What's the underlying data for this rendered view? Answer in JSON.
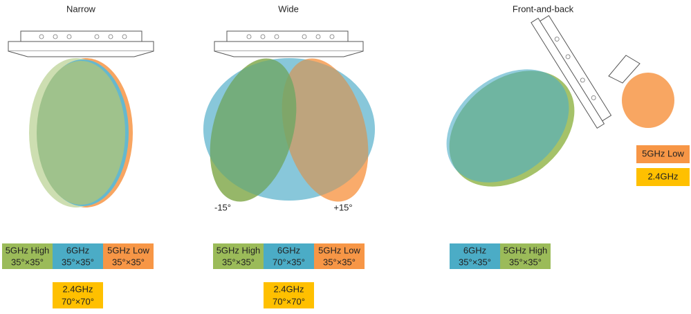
{
  "panels": [
    {
      "title": "Narrow",
      "boxes": [
        {
          "label": "5GHz High",
          "spec": "35°×35°"
        },
        {
          "label": "6GHz",
          "spec": "35°×35°"
        },
        {
          "label": "5GHz Low",
          "spec": "35°×35°"
        },
        {
          "label": "2.4GHz",
          "spec": "70°×70°"
        }
      ]
    },
    {
      "title": "Wide",
      "angle_labels": [
        "-15°",
        "+15°"
      ],
      "boxes": [
        {
          "label": "5GHz High",
          "spec": "35°×35°"
        },
        {
          "label": "6GHz",
          "spec": "70°×35°"
        },
        {
          "label": "5GHz Low",
          "spec": "35°×35°"
        },
        {
          "label": "2.4GHz",
          "spec": "70°×70°"
        }
      ]
    },
    {
      "title": "Front-and-back",
      "boxes": [
        {
          "label": "6GHz",
          "spec": "35°×35°"
        },
        {
          "label": "5GHz High",
          "spec": "35°×35°"
        },
        {
          "label": "5GHz Low"
        },
        {
          "label": "2.4GHz"
        }
      ]
    }
  ]
}
